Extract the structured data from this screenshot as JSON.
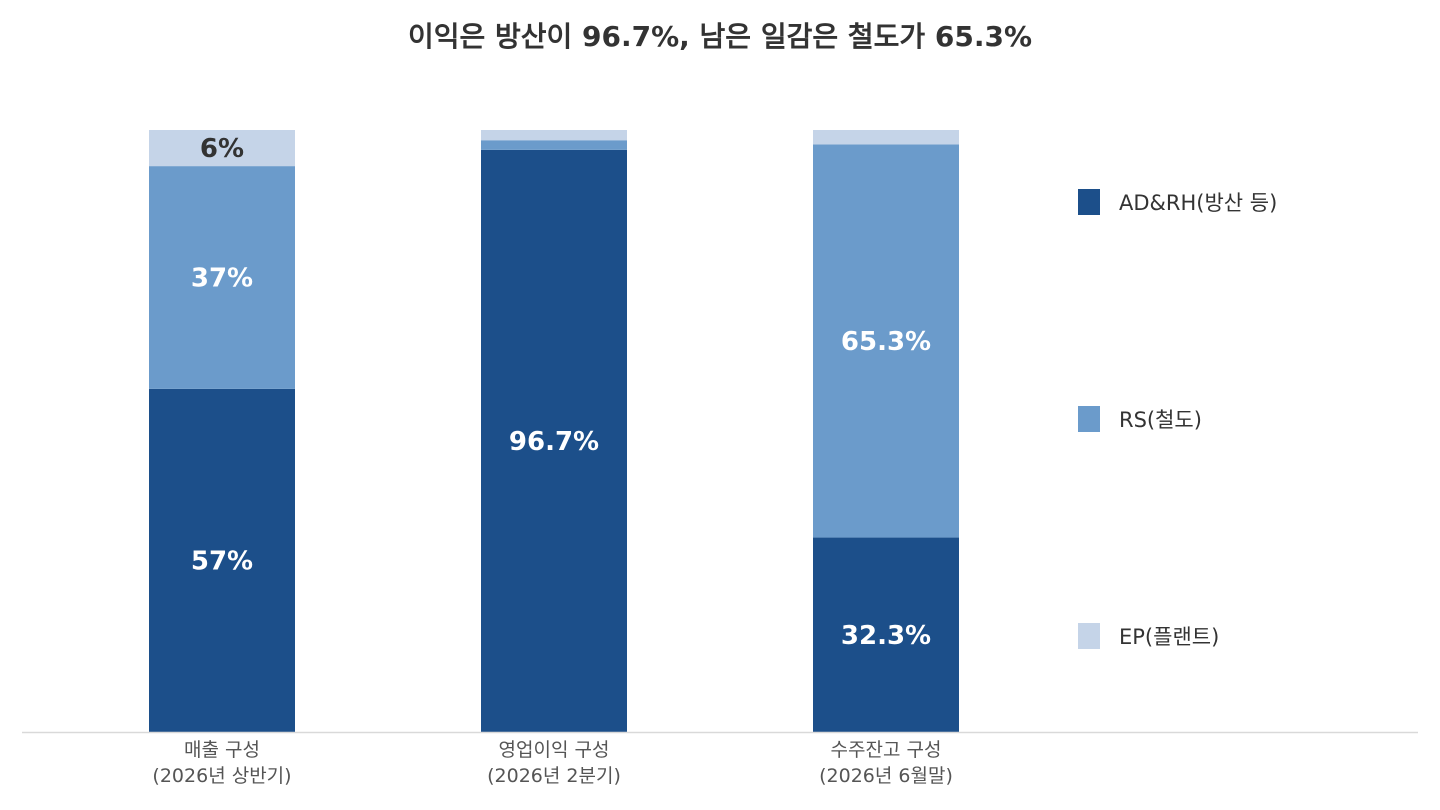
{
  "chart_data": {
    "type": "bar",
    "stacked": true,
    "normalized": true,
    "title": "이익은 방산이 96.7%, 남은 일감은 철도가 65.3%",
    "xlabel": "",
    "ylabel": "",
    "ylim": [
      0,
      100
    ],
    "grid": false,
    "legend_position": "right",
    "categories": [
      {
        "line1": "매출 구성",
        "line2": "(2026년 상반기)"
      },
      {
        "line1": "영업이익 구성",
        "line2": "(2026년 2분기)"
      },
      {
        "line1": "수주잔고 구성",
        "line2": "(2026년 6월말)"
      }
    ],
    "series": [
      {
        "name": "AD&RH(방산 등)",
        "color": "#1c4f8a",
        "label_color": "#ffffff",
        "values": [
          57,
          96.7,
          32.3
        ],
        "labels": [
          "57%",
          "96.7%",
          "32.3%"
        ]
      },
      {
        "name": "RS(철도)",
        "color": "#6b9bcb",
        "label_color": "#ffffff",
        "values": [
          37,
          1.6,
          65.3
        ],
        "labels": [
          "37%",
          "",
          "65.3%"
        ]
      },
      {
        "name": "EP(플랜트)",
        "color": "#c5d4e8",
        "label_color": "#333333",
        "values": [
          6,
          1.7,
          2.4
        ],
        "labels": [
          "6%",
          "",
          ""
        ]
      }
    ]
  }
}
